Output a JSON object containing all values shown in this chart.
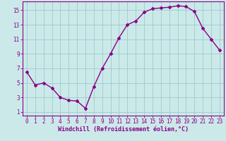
{
  "x": [
    0,
    1,
    2,
    3,
    4,
    5,
    6,
    7,
    8,
    9,
    10,
    11,
    12,
    13,
    14,
    15,
    16,
    17,
    18,
    19,
    20,
    21,
    22,
    23
  ],
  "y": [
    6.5,
    4.7,
    5.0,
    4.3,
    3.0,
    2.6,
    2.5,
    1.5,
    4.5,
    7.0,
    9.0,
    11.2,
    13.0,
    13.5,
    14.7,
    15.2,
    15.3,
    15.4,
    15.6,
    15.5,
    14.8,
    12.5,
    11.0,
    9.5
  ],
  "line_color": "#880088",
  "marker": "D",
  "marker_size": 2.0,
  "line_width": 1.0,
  "xlabel": "Windchill (Refroidissement éolien,°C)",
  "xlabel_color": "#880088",
  "xlabel_fontsize": 6.0,
  "xtick_labels": [
    "0",
    "1",
    "2",
    "3",
    "4",
    "5",
    "6",
    "7",
    "8",
    "9",
    "10",
    "11",
    "12",
    "13",
    "14",
    "15",
    "16",
    "17",
    "18",
    "19",
    "20",
    "21",
    "22",
    "23"
  ],
  "ytick_values": [
    1,
    3,
    5,
    7,
    9,
    11,
    13,
    15
  ],
  "ylim": [
    0.5,
    16.2
  ],
  "xlim": [
    -0.5,
    23.5
  ],
  "bg_color": "#cce9e9",
  "grid_color": "#99cccc",
  "tick_color": "#880088",
  "tick_fontsize": 5.5,
  "spine_color": "#880088"
}
